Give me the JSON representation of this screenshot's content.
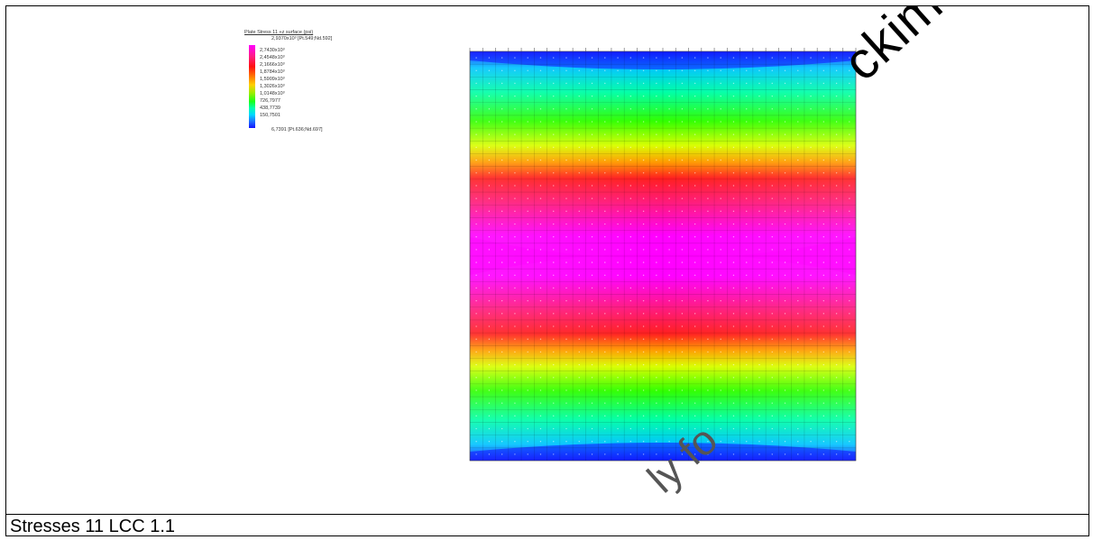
{
  "caption": "Stresses 11 LCC 1.1",
  "legend": {
    "title": "Plate Stress 11 +z surface (psi)",
    "max_label": "2,9370x10³ [Pt.549;Nd.592]",
    "ticks": [
      "2,7430x10³",
      "2,4548x10³",
      "2,1666x10³",
      "1,8784x10³",
      "1,5909x10³",
      "1,3026x10³",
      "1,0148x10³",
      "726,7977",
      "438,7739",
      "150,7501"
    ],
    "min_label": "6,7391 [Pt.636;Nd.697]",
    "colors": [
      "#ff00ff",
      "#ff1d80",
      "#ff1010",
      "#ff7a00",
      "#ffd000",
      "#9aee00",
      "#19ff19",
      "#00ffb0",
      "#00d8ff",
      "#1e72ff",
      "#1212ff"
    ]
  },
  "watermark": {
    "right_text": "ckimo only.",
    "bottom_text": "ly fo"
  }
}
